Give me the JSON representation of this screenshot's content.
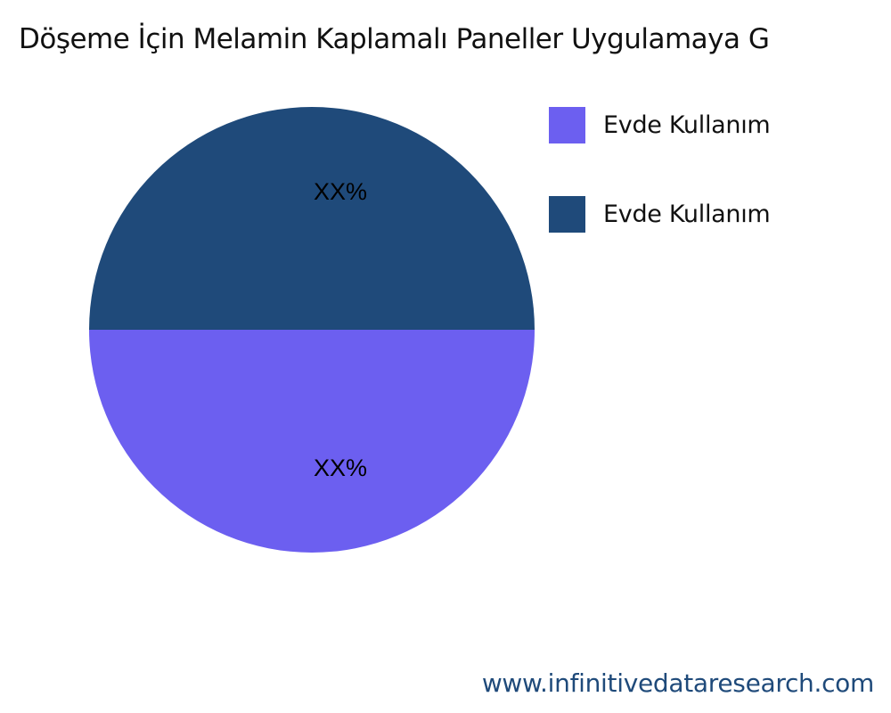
{
  "chart_data": {
    "type": "pie",
    "title": "Döşeme İçin Melamin Kaplamalı Paneller Uygulamaya G",
    "slices": [
      {
        "name": "Evde Kullanım",
        "value": 50,
        "label": "XX%",
        "color": "#6c5ff0"
      },
      {
        "name": "Evde Kullanım",
        "value": 50,
        "label": "XX%",
        "color": "#1f4a7a"
      }
    ],
    "legend_position": "right"
  },
  "watermark": "www.infinitivedataresearch.com"
}
